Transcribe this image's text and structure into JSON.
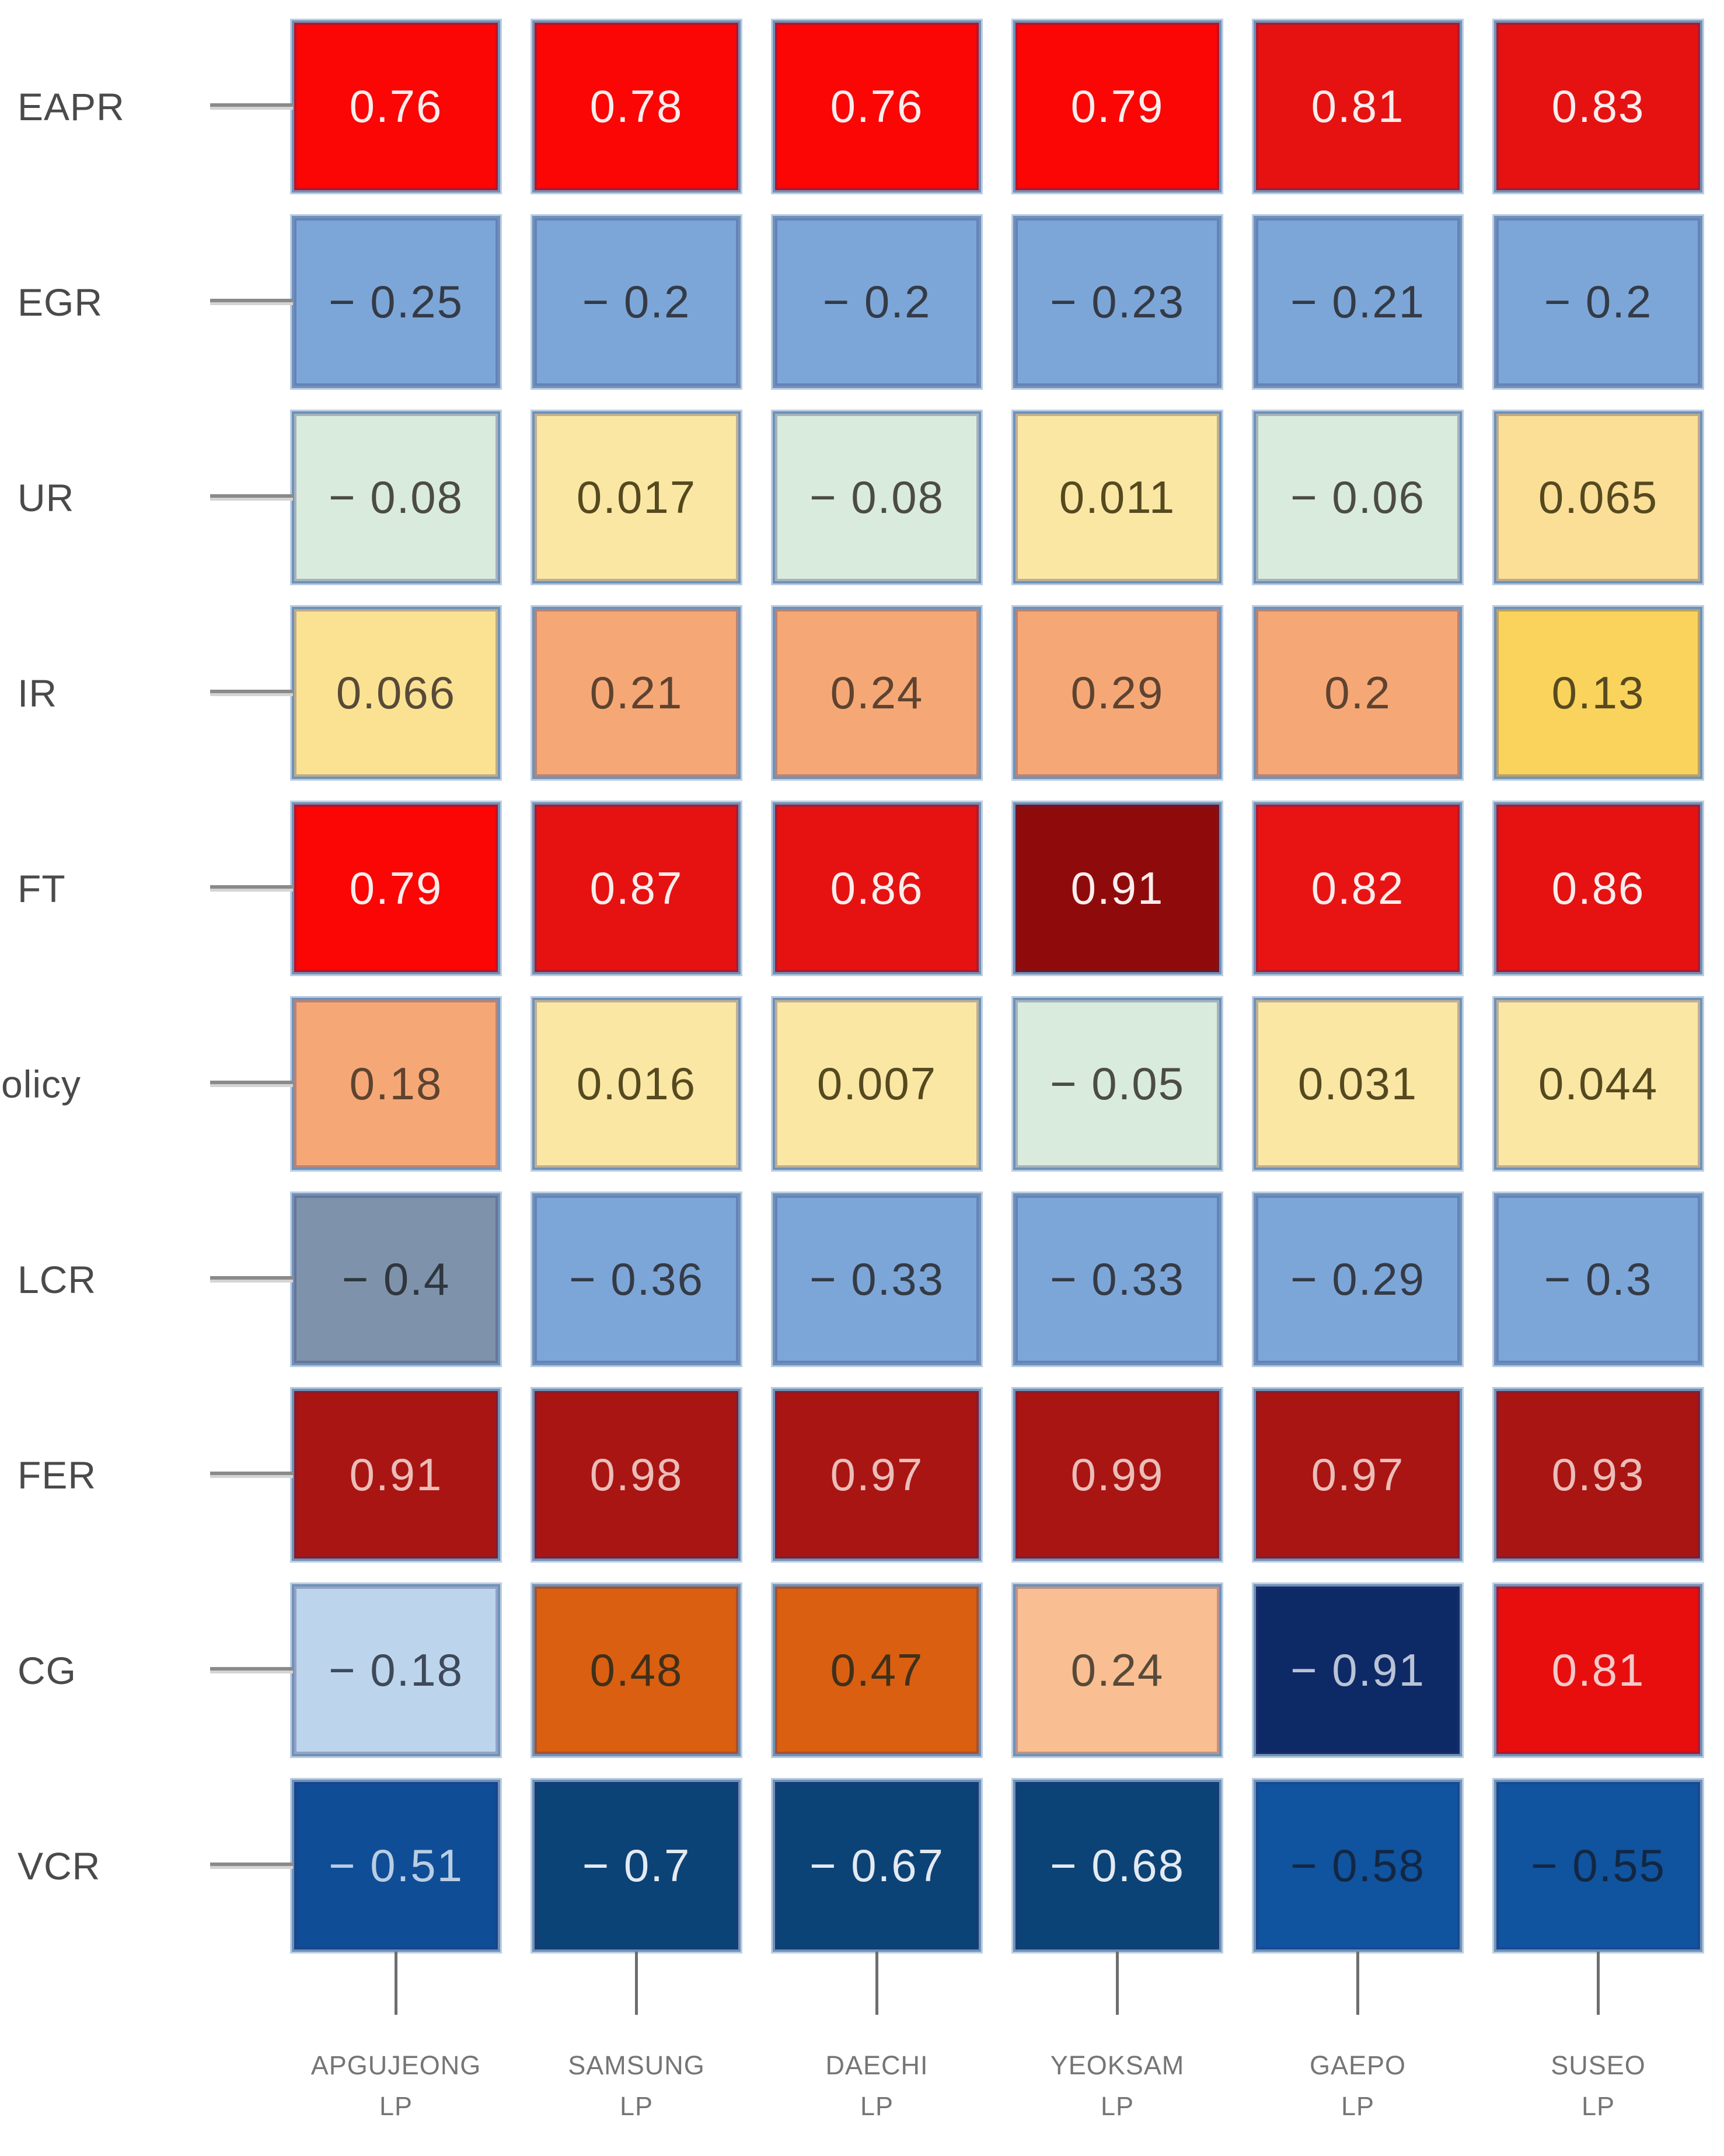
{
  "chart_data": {
    "type": "heatmap",
    "title": "",
    "x_categories_full": [
      "APGUJEONG LP",
      "SAMSUNG LP",
      "DAECHI LP",
      "YEOKSAM LP",
      "GAEPO LP",
      "SUSEO LP"
    ],
    "x_categories": [
      {
        "name": "APGUJEONG",
        "suffix": "LP"
      },
      {
        "name": "SAMSUNG",
        "suffix": "LP"
      },
      {
        "name": "DAECHI",
        "suffix": "LP"
      },
      {
        "name": "YEOKSAM",
        "suffix": "LP"
      },
      {
        "name": "GAEPO",
        "suffix": "LP"
      },
      {
        "name": "SUSEO",
        "suffix": "LP"
      }
    ],
    "y_categories": [
      "EAPR",
      "EGR",
      "UR",
      "IR",
      "FT",
      "olicy",
      "LCR",
      "FER",
      "CG",
      "VCR"
    ],
    "values": [
      [
        0.76,
        0.78,
        0.76,
        0.79,
        0.81,
        0.83
      ],
      [
        -0.25,
        -0.2,
        -0.2,
        -0.23,
        -0.21,
        -0.2
      ],
      [
        -0.08,
        0.017,
        -0.08,
        0.011,
        -0.06,
        0.065
      ],
      [
        0.066,
        0.21,
        0.24,
        0.29,
        0.2,
        0.13
      ],
      [
        0.79,
        0.87,
        0.86,
        0.91,
        0.82,
        0.86
      ],
      [
        0.18,
        0.016,
        0.007,
        -0.05,
        0.031,
        0.044
      ],
      [
        -0.4,
        -0.36,
        -0.33,
        -0.33,
        -0.29,
        -0.3
      ],
      [
        0.91,
        0.98,
        0.97,
        0.99,
        0.97,
        0.93
      ],
      [
        -0.18,
        0.48,
        0.47,
        0.24,
        -0.91,
        0.81
      ],
      [
        -0.51,
        -0.7,
        -0.67,
        -0.68,
        -0.58,
        -0.55
      ]
    ],
    "labels": [
      [
        "0.76",
        "0.78",
        "0.76",
        "0.79",
        "0.81",
        "0.83"
      ],
      [
        "− 0.25",
        "− 0.2",
        "− 0.2",
        "− 0.23",
        "− 0.21",
        "− 0.2"
      ],
      [
        "− 0.08",
        "0.017",
        "− 0.08",
        "0.011",
        "− 0.06",
        "0.065"
      ],
      [
        "0.066",
        "0.21",
        "0.24",
        "0.29",
        "0.2",
        "0.13"
      ],
      [
        "0.79",
        "0.87",
        "0.86",
        "0.91",
        "0.82",
        "0.86"
      ],
      [
        "0.18",
        "0.016",
        "0.007",
        "− 0.05",
        "0.031",
        "0.044"
      ],
      [
        "− 0.4",
        "− 0.36",
        "− 0.33",
        "− 0.33",
        "− 0.29",
        "− 0.3"
      ],
      [
        "0.91",
        "0.98",
        "0.97",
        "0.99",
        "0.97",
        "0.93"
      ],
      [
        "− 0.18",
        "0.48",
        "0.47",
        "0.24",
        "− 0.91",
        "0.81"
      ],
      [
        "− 0.51",
        "− 0.7",
        "− 0.67",
        "− 0.68",
        "− 0.58",
        "− 0.55"
      ]
    ],
    "value_range": [
      -1,
      1
    ],
    "grid": false,
    "legend": "none"
  },
  "heatmap_style": {
    "border_main": "#6E92B8",
    "border_outer": "#BCCDE2",
    "tick_color": "#6E6E6E",
    "leader_line_color": "#8A8A8A",
    "row_label_color": "#4A4A4A",
    "axis_label_color": "#757575",
    "page_background": "#FFFFFF",
    "cell_bg": [
      [
        "#FB0505",
        "#FB0505",
        "#FB0505",
        "#FB0505",
        "#E61212",
        "#E61212"
      ],
      [
        "#7DA6D8",
        "#7DA6D8",
        "#7DA6D8",
        "#7DA6D8",
        "#7DA6D8",
        "#7DA6D8"
      ],
      [
        "#D9EBDD",
        "#FBE7A4",
        "#D9EBDD",
        "#FBE7A4",
        "#D9EBDD",
        "#FBDF96"
      ],
      [
        "#FBE293",
        "#F5A876",
        "#F5A876",
        "#F5A876",
        "#F5A876",
        "#FAD35C"
      ],
      [
        "#FB0505",
        "#E61212",
        "#E61212",
        "#8F0B0B",
        "#E81414",
        "#E61212"
      ],
      [
        "#F5A876",
        "#FBE7A4",
        "#FBE7A4",
        "#D9EBDD",
        "#FBE7A4",
        "#FBE7A4"
      ],
      [
        "#7E93AB",
        "#7DA6D8",
        "#7DA6D8",
        "#7DA6D8",
        "#7DA6D8",
        "#7DA6D8"
      ],
      [
        "#A91512",
        "#A91512",
        "#A91512",
        "#A91512",
        "#A91512",
        "#A91512"
      ],
      [
        "#BDD5EC",
        "#DA5F11",
        "#DA5F11",
        "#F9BE92",
        "#0E2A66",
        "#E90E0E"
      ],
      [
        "#0F4E96",
        "#0C4377",
        "#0C4377",
        "#0C4377",
        "#10539E",
        "#10539E"
      ]
    ],
    "cell_fg": [
      [
        "#FBEDED",
        "#FBEDED",
        "#FBEDED",
        "#FBEDED",
        "#FBEDED",
        "#FBEDED"
      ],
      [
        "#343B46",
        "#343B46",
        "#343B46",
        "#343B46",
        "#343B46",
        "#343B46"
      ],
      [
        "#4C4C44",
        "#55491F",
        "#4C4C44",
        "#55491F",
        "#4C4C44",
        "#55491F"
      ],
      [
        "#574A38",
        "#5E4330",
        "#5E4330",
        "#5E4330",
        "#5E4330",
        "#574A20"
      ],
      [
        "#FBEDED",
        "#FBEDED",
        "#FBEDED",
        "#FBEDED",
        "#FBEDED",
        "#FBEDED"
      ],
      [
        "#5E4330",
        "#55491F",
        "#55491F",
        "#4C4C44",
        "#55491F",
        "#55491F"
      ],
      [
        "#30363E",
        "#343B46",
        "#343B46",
        "#343B46",
        "#343B46",
        "#343B46"
      ],
      [
        "#EBBDB9",
        "#EBBDB9",
        "#EBBDB9",
        "#EBBDB9",
        "#EBBDB9",
        "#EBBDB9"
      ],
      [
        "#3E4A5A",
        "#40301A",
        "#40301A",
        "#574A38",
        "#B9C2D6",
        "#F3CACA"
      ],
      [
        "#B9CDE4",
        "#E4EAF2",
        "#E4EAF2",
        "#E4EAF2",
        "#132743",
        "#132743"
      ]
    ]
  }
}
